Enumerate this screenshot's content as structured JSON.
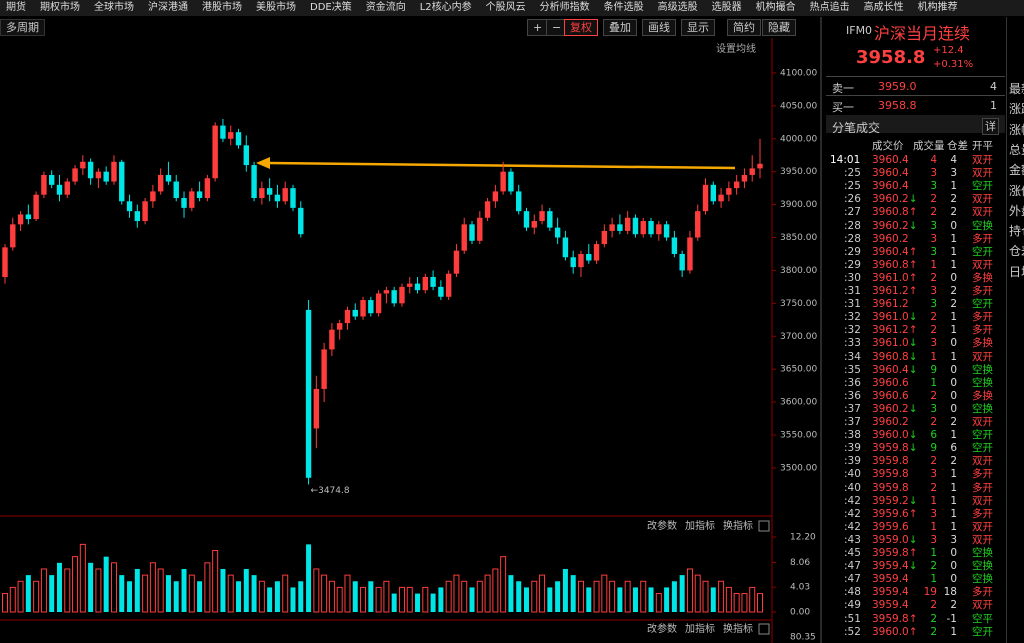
{
  "menu": [
    "期货",
    "期权市场",
    "全球市场",
    "沪深港通",
    "港股市场",
    "美股市场",
    "DDE决策",
    "资金流向",
    "L2核心内参",
    "个股风云",
    "分析师指数",
    "条件选股",
    "高级选股",
    "选股器",
    "机构撮合",
    "热点追击",
    "高成长性",
    "机构推荐"
  ],
  "toolbar": {
    "period": "多周期",
    "buttons": [
      "+",
      "−",
      "复权",
      "叠加",
      "画线",
      "显示",
      "简约",
      "隐藏"
    ],
    "ma_setting": "设置均线"
  },
  "kline": {
    "ylim": [
      3430,
      4150
    ],
    "yticks": [
      {
        "value": 4100,
        "label": "4100.00"
      },
      {
        "value": 4050,
        "label": "4050.00"
      },
      {
        "value": 4000,
        "label": "4000.00"
      },
      {
        "value": 3950,
        "label": "3950.00"
      },
      {
        "value": 3900,
        "label": "3900.00"
      },
      {
        "value": 3850,
        "label": "3850.00"
      },
      {
        "value": 3800,
        "label": "3800.00"
      },
      {
        "value": 3750,
        "label": "3750.00"
      },
      {
        "value": 3700,
        "label": "3700.00"
      },
      {
        "value": 3650,
        "label": "3650.00"
      },
      {
        "value": 3600,
        "label": "3600.00"
      },
      {
        "value": 3550,
        "label": "3550.00"
      },
      {
        "value": 3500,
        "label": "3500.00"
      }
    ],
    "low_label": "←3474.8",
    "up_color": "#ff3d3d",
    "down_color": "#00e5e5",
    "candles": [
      [
        3790,
        3840,
        3780,
        3835
      ],
      [
        3835,
        3880,
        3830,
        3870
      ],
      [
        3870,
        3890,
        3860,
        3885
      ],
      [
        3885,
        3900,
        3870,
        3878
      ],
      [
        3878,
        3920,
        3875,
        3915
      ],
      [
        3915,
        3950,
        3910,
        3945
      ],
      [
        3945,
        3952,
        3925,
        3930
      ],
      [
        3930,
        3945,
        3905,
        3915
      ],
      [
        3915,
        3940,
        3910,
        3935
      ],
      [
        3935,
        3960,
        3930,
        3955
      ],
      [
        3955,
        3975,
        3945,
        3965
      ],
      [
        3965,
        3970,
        3930,
        3940
      ],
      [
        3940,
        3955,
        3925,
        3950
      ],
      [
        3950,
        3958,
        3930,
        3935
      ],
      [
        3935,
        3975,
        3930,
        3965
      ],
      [
        3965,
        3968,
        3900,
        3905
      ],
      [
        3905,
        3915,
        3880,
        3890
      ],
      [
        3890,
        3900,
        3865,
        3875
      ],
      [
        3875,
        3910,
        3870,
        3905
      ],
      [
        3905,
        3930,
        3895,
        3920
      ],
      [
        3920,
        3955,
        3915,
        3945
      ],
      [
        3945,
        3965,
        3930,
        3935
      ],
      [
        3935,
        3945,
        3905,
        3910
      ],
      [
        3910,
        3920,
        3880,
        3895
      ],
      [
        3895,
        3925,
        3890,
        3920
      ],
      [
        3920,
        3935,
        3905,
        3910
      ],
      [
        3910,
        3945,
        3905,
        3940
      ],
      [
        3940,
        4025,
        3935,
        4020
      ],
      [
        4020,
        4030,
        3995,
        4000
      ],
      [
        4000,
        4020,
        3990,
        4010
      ],
      [
        4010,
        4015,
        3985,
        3990
      ],
      [
        3990,
        4005,
        3950,
        3960
      ],
      [
        3960,
        3965,
        3905,
        3910
      ],
      [
        3910,
        3935,
        3900,
        3925
      ],
      [
        3925,
        3940,
        3905,
        3915
      ],
      [
        3915,
        3930,
        3895,
        3905
      ],
      [
        3905,
        3935,
        3900,
        3925
      ],
      [
        3925,
        3930,
        3890,
        3895
      ],
      [
        3895,
        3905,
        3850,
        3855
      ],
      [
        3740,
        3755,
        3474.8,
        3485
      ],
      [
        3560,
        3640,
        3530,
        3620
      ],
      [
        3620,
        3690,
        3600,
        3680
      ],
      [
        3680,
        3720,
        3670,
        3710
      ],
      [
        3710,
        3725,
        3695,
        3720
      ],
      [
        3720,
        3745,
        3710,
        3740
      ],
      [
        3740,
        3750,
        3725,
        3730
      ],
      [
        3730,
        3760,
        3725,
        3755
      ],
      [
        3755,
        3760,
        3730,
        3735
      ],
      [
        3735,
        3770,
        3730,
        3765
      ],
      [
        3765,
        3775,
        3750,
        3770
      ],
      [
        3770,
        3775,
        3745,
        3750
      ],
      [
        3750,
        3780,
        3745,
        3775
      ],
      [
        3775,
        3790,
        3765,
        3780
      ],
      [
        3780,
        3790,
        3765,
        3770
      ],
      [
        3770,
        3795,
        3765,
        3790
      ],
      [
        3790,
        3800,
        3770,
        3775
      ],
      [
        3775,
        3785,
        3755,
        3760
      ],
      [
        3760,
        3800,
        3755,
        3795
      ],
      [
        3795,
        3840,
        3790,
        3830
      ],
      [
        3830,
        3880,
        3825,
        3870
      ],
      [
        3870,
        3875,
        3840,
        3845
      ],
      [
        3845,
        3890,
        3840,
        3880
      ],
      [
        3880,
        3910,
        3875,
        3905
      ],
      [
        3905,
        3930,
        3895,
        3920
      ],
      [
        3920,
        3965,
        3915,
        3950
      ],
      [
        3950,
        3955,
        3915,
        3920
      ],
      [
        3920,
        3930,
        3885,
        3890
      ],
      [
        3890,
        3895,
        3860,
        3865
      ],
      [
        3865,
        3885,
        3855,
        3875
      ],
      [
        3875,
        3900,
        3870,
        3890
      ],
      [
        3890,
        3895,
        3860,
        3865
      ],
      [
        3865,
        3880,
        3840,
        3850
      ],
      [
        3850,
        3860,
        3815,
        3820
      ],
      [
        3820,
        3830,
        3795,
        3805
      ],
      [
        3805,
        3830,
        3790,
        3825
      ],
      [
        3825,
        3840,
        3810,
        3815
      ],
      [
        3815,
        3845,
        3810,
        3840
      ],
      [
        3840,
        3870,
        3835,
        3860
      ],
      [
        3860,
        3880,
        3850,
        3870
      ],
      [
        3870,
        3885,
        3855,
        3860
      ],
      [
        3860,
        3890,
        3855,
        3880
      ],
      [
        3880,
        3885,
        3850,
        3855
      ],
      [
        3855,
        3880,
        3850,
        3875
      ],
      [
        3875,
        3880,
        3850,
        3855
      ],
      [
        3855,
        3875,
        3845,
        3870
      ],
      [
        3870,
        3875,
        3845,
        3850
      ],
      [
        3850,
        3860,
        3820,
        3825
      ],
      [
        3825,
        3830,
        3790,
        3800
      ],
      [
        3800,
        3860,
        3795,
        3850
      ],
      [
        3850,
        3900,
        3845,
        3890
      ],
      [
        3890,
        3940,
        3885,
        3930
      ],
      [
        3930,
        3935,
        3900,
        3905
      ],
      [
        3905,
        3925,
        3895,
        3915
      ],
      [
        3915,
        3935,
        3905,
        3925
      ],
      [
        3925,
        3945,
        3915,
        3935
      ],
      [
        3935,
        3955,
        3925,
        3945
      ],
      [
        3945,
        3975,
        3935,
        3955
      ],
      [
        3955,
        4000,
        3940,
        3962
      ]
    ],
    "volume": [
      3,
      4,
      5,
      6,
      5,
      7,
      6,
      8,
      7,
      9,
      11,
      8,
      7,
      9,
      8,
      6,
      5,
      7,
      6,
      8,
      7,
      6,
      5,
      7,
      6,
      5,
      8,
      10,
      7,
      6,
      5,
      7,
      6,
      5,
      4,
      5,
      6,
      4,
      5,
      11,
      7,
      6,
      5,
      4,
      6,
      5,
      4,
      5,
      4,
      5,
      3,
      4,
      4,
      3,
      4,
      3,
      4,
      5,
      6,
      5,
      4,
      5,
      6,
      7,
      9,
      6,
      5,
      4,
      5,
      6,
      4,
      5,
      7,
      6,
      5,
      4,
      5,
      6,
      5,
      4,
      5,
      4,
      5,
      4,
      3,
      4,
      5,
      6,
      7,
      6,
      5,
      4,
      5,
      4,
      3,
      3,
      4,
      3
    ],
    "vol_ylim": [
      0,
      12.2
    ],
    "vol_yticks": [
      {
        "value": 12.2,
        "label": "12.20"
      },
      {
        "value": 8.06,
        "label": "8.06"
      },
      {
        "value": 4.03,
        "label": "4.03"
      },
      {
        "value": 0,
        "label": "0.00"
      }
    ],
    "panel_buttons": [
      "改参数",
      "加指标",
      "换指标"
    ],
    "bottom_tick": "80.35"
  },
  "quote": {
    "code": "IFM0",
    "name": "沪深当月连续",
    "price": "3958.8",
    "change": "+12.4",
    "pct": "+0.31%",
    "ask_label": "卖一",
    "ask": "3959.0",
    "ask_vol": 4,
    "bid_label": "买一",
    "bid": "3958.8",
    "bid_vol": 1,
    "ticks_title": "分笔成交",
    "detail": "详",
    "columns": [
      "成交价",
      "成交量",
      "仓差",
      "开平"
    ],
    "rows": [
      [
        "14:01",
        "3960.4",
        4,
        4,
        "双开"
      ],
      [
        ":25",
        "3960.4",
        3,
        3,
        "双开"
      ],
      [
        ":25",
        "3960.4",
        3,
        1,
        "空开"
      ],
      [
        ":26",
        "3960.2↓",
        2,
        2,
        "双开"
      ],
      [
        ":27",
        "3960.8↑",
        2,
        2,
        "双开"
      ],
      [
        ":28",
        "3960.2↓",
        3,
        0,
        "空换"
      ],
      [
        ":28",
        "3960.2",
        3,
        1,
        "多开"
      ],
      [
        ":29",
        "3960.4↑",
        3,
        1,
        "空开"
      ],
      [
        ":29",
        "3960.8↑",
        1,
        1,
        "双开"
      ],
      [
        ":30",
        "3961.0↑",
        2,
        0,
        "多换"
      ],
      [
        ":31",
        "3961.2↑",
        3,
        2,
        "多开"
      ],
      [
        ":31",
        "3961.2",
        3,
        2,
        "空开"
      ],
      [
        ":32",
        "3961.0↓",
        2,
        1,
        "多开"
      ],
      [
        ":32",
        "3961.2↑",
        2,
        1,
        "多开"
      ],
      [
        ":33",
        "3961.0↓",
        3,
        0,
        "多换"
      ],
      [
        ":34",
        "3960.8↓",
        1,
        1,
        "双开"
      ],
      [
        ":35",
        "3960.4↓",
        9,
        0,
        "空换"
      ],
      [
        ":36",
        "3960.6",
        1,
        0,
        "空换"
      ],
      [
        ":36",
        "3960.6",
        2,
        0,
        "多换"
      ],
      [
        ":37",
        "3960.2↓",
        3,
        0,
        "空换"
      ],
      [
        ":37",
        "3960.2",
        2,
        2,
        "双开"
      ],
      [
        ":38",
        "3960.0↓",
        6,
        1,
        "空开"
      ],
      [
        ":39",
        "3959.8↓",
        9,
        6,
        "空开"
      ],
      [
        ":39",
        "3959.8",
        2,
        2,
        "双开"
      ],
      [
        ":40",
        "3959.8",
        3,
        1,
        "多开"
      ],
      [
        ":40",
        "3959.8",
        2,
        1,
        "多开"
      ],
      [
        ":42",
        "3959.2↓",
        1,
        1,
        "双开"
      ],
      [
        ":42",
        "3959.6↑",
        3,
        1,
        "多开"
      ],
      [
        ":42",
        "3959.6",
        1,
        1,
        "双开"
      ],
      [
        ":43",
        "3959.0↓",
        3,
        3,
        "双开"
      ],
      [
        ":45",
        "3959.8↑",
        1,
        0,
        "空换"
      ],
      [
        ":47",
        "3959.4↓",
        2,
        0,
        "空换"
      ],
      [
        ":47",
        "3959.4",
        1,
        0,
        "空换"
      ],
      [
        ":48",
        "3959.4",
        19,
        18,
        "多开"
      ],
      [
        ":49",
        "3959.4",
        2,
        2,
        "双开"
      ],
      [
        ":51",
        "3959.8↑",
        2,
        -1,
        "空平"
      ],
      [
        ":52",
        "3960.0↑",
        2,
        1,
        "空开"
      ]
    ]
  },
  "side_labels": [
    "最新",
    "涨跌",
    "涨幅",
    "总量",
    "金额",
    "涨停",
    "外盘",
    "持仓",
    "仓差",
    "日增"
  ]
}
